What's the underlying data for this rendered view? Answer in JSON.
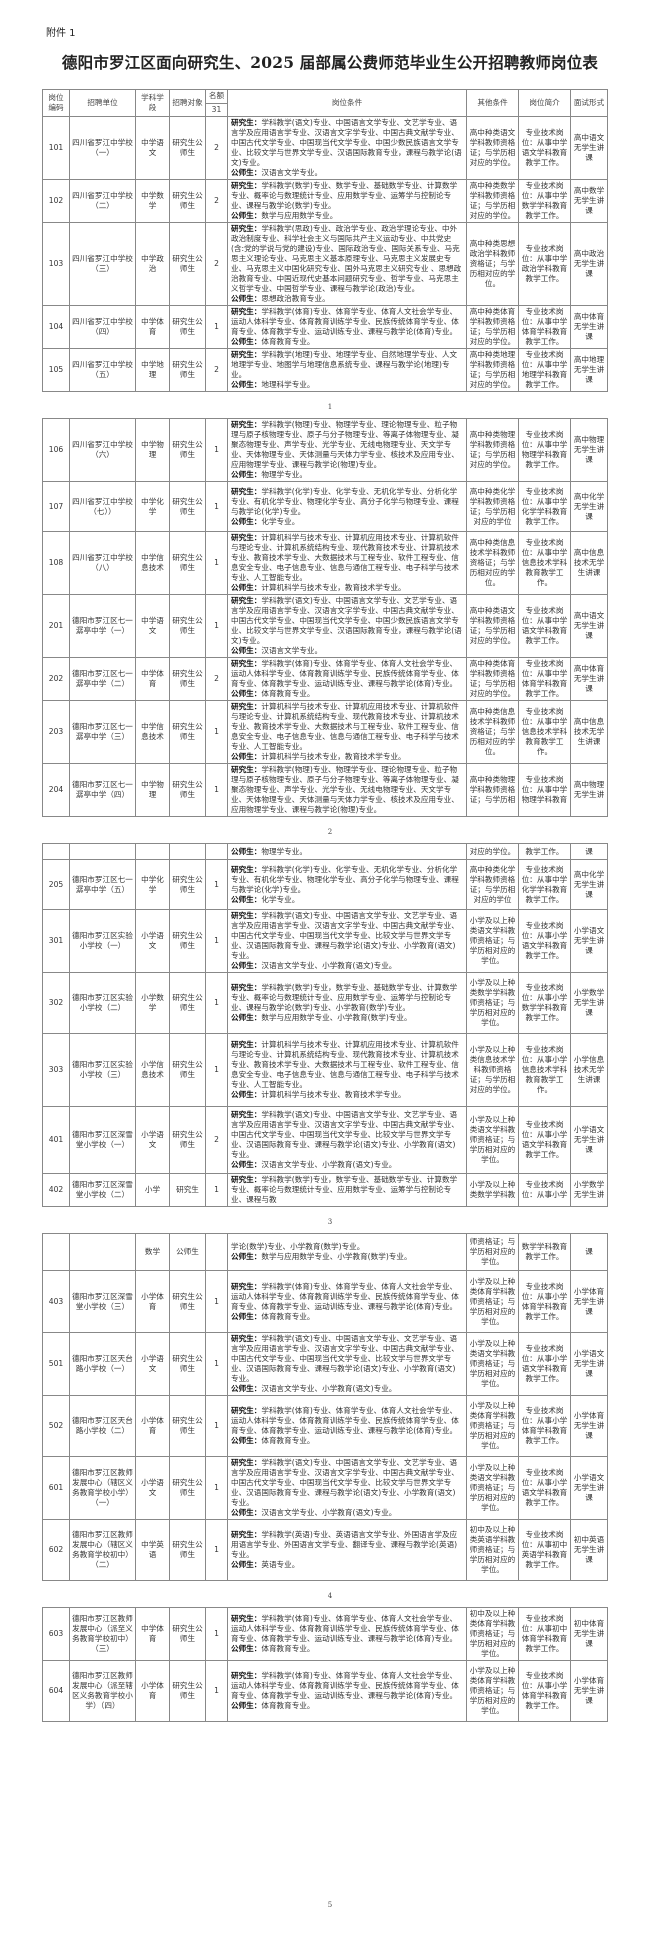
{
  "attachment_label": "附件 1",
  "title": "德阳市罗江区面向研究生、2025 届部属公费师范毕业生公开招聘教师岗位表",
  "header": {
    "code": "岗位编码",
    "unit": "招聘单位",
    "level": "学科学段",
    "target": "招聘对象",
    "count": "名额",
    "count_total": "31",
    "conditions": "岗位条件",
    "other": "其他条件",
    "intro": "岗位简介",
    "interview": "面试形式"
  },
  "page_numbers": [
    "1",
    "2",
    "3",
    "4",
    "5"
  ],
  "pages": [
    {
      "rows": [
        {
          "code": "101",
          "unit": "四川省罗江中学校（一）",
          "level": "中学语文",
          "target": "研究生公师生",
          "count": "2",
          "cond": [
            {
              "label": "研究生：",
              "text": "学科教学(语文)专业、中国语言文学专业、文艺学专业、语言学及应用语言学专业、汉语言文字学专业、中国古典文献学专业、中国古代文学专业、中国现当代文学专业、中国少数民族语言文学专业、比较文学与世界文学专业、汉语国际教育专业，课程与教学论(语文)专业。"
            },
            {
              "label": "公师生：",
              "text": "汉语言文学专业。"
            }
          ],
          "other": "高中种类语文学科教师资格证；与学历相对应的学位。",
          "intro": "专业技术岗位：从事中学语文学科教育教学工作。",
          "interview": "高中语文无学生讲课"
        },
        {
          "code": "102",
          "unit": "四川省罗江中学校（二）",
          "level": "中学数学",
          "target": "研究生公师生",
          "count": "2",
          "cond": [
            {
              "label": "研究生：",
              "text": "学科教学(数学)专业、数学专业、基础数学专业、计算数学专业、概率论与数理统计专业、应用数学专业、运筹学与控制论专业、课程与教学论(数学)专业。"
            },
            {
              "label": "公师生：",
              "text": "数学与应用数学专业。"
            }
          ],
          "other": "高中种类数学学科教师资格证；与学历相对应的学位。",
          "intro": "专业技术岗位：从事中学数学学科教育教学工作。",
          "interview": "高中数学无学生讲课"
        },
        {
          "code": "103",
          "unit": "四川省罗江中学校（三）",
          "level": "中学政治",
          "target": "研究生公师生",
          "count": "2",
          "cond": [
            {
              "label": "研究生：",
              "text": "学科教学(思政)专业、政治学专业、政治学理论专业、中外政治制度专业、科学社会主义与国际共产主义运动专业、中共党史(含:党的学说与党的建设)专业、国际政治专业、国际关系专业、马克思主义理论专业、马克思主义基本原理专业、马克思主义发展史专业、马克思主义中国化研究专业、国外马克思主义研究专业 、思想政治教育专业、中国近现代史基本问题研究专业、哲学专业、马克思主义哲学专业、中国哲学专业、课程与教学论(政治)专业。"
            },
            {
              "label": "公师生：",
              "text": "思想政治教育专业。"
            }
          ],
          "other": "高中种类思想政治学科教师资格证；与学历相对应的学位。",
          "intro": "专业技术岗位：从事中学政治学科教育教学工作。",
          "interview": "高中政治无学生讲课"
        },
        {
          "code": "104",
          "unit": "四川省罗江中学校（四）",
          "level": "中学体育",
          "target": "研究生公师生",
          "count": "1",
          "cond": [
            {
              "label": "研究生：",
              "text": "学科教学(体育)专业、体育学专业、体育人文社会学专业、运动人体科学专业、体育教育训练学专业、民族传统体育学专业、体育专业、体育教学专业、运动训练专业、课程与教学论(体育)专业。"
            },
            {
              "label": "公师生：",
              "text": "体育教育专业。"
            }
          ],
          "other": "高中种类体育学科教师资格证；与学历相对应的学位。",
          "intro": "专业技术岗位：从事中学体育学科教育教学工作。",
          "interview": "高中体育无学生讲课"
        },
        {
          "code": "105",
          "unit": "四川省罗江中学校（五）",
          "level": "中学地理",
          "target": "研究生公师生",
          "count": "2",
          "cond": [
            {
              "label": "研究生：",
              "text": "学科教学(地理)专业、地理学专业、自然地理学专业、人文地理学专业、地图学与地理信息系统专业、课程与教学论(地理)专业。"
            },
            {
              "label": "公师生：",
              "text": "地理科学专业。"
            }
          ],
          "other": "高中种类地理学科教师资格证；与学历相对应的学位。",
          "intro": "专业技术岗位：从事中学地理学科教育教学工作。",
          "interview": "高中地理无学生讲课"
        }
      ]
    },
    {
      "rows": [
        {
          "code": "106",
          "unit": "四川省罗江中学校（六）",
          "level": "中学物理",
          "target": "研究生公师生",
          "count": "1",
          "cond": [
            {
              "label": "研究生：",
              "text": "学科教学(物理)专业、物理学专业、理论物理专业、粒子物理与原子核物理专业、原子与分子物理专业、等离子体物理专业、凝聚态物理专业、声学专业、光学专业、无线电物理专业、天文学专业、天体物理专业、天体测量与天体力学专业、核技术及应用专业、应用物理学专业、课程与教学论(物理)专业。"
            },
            {
              "label": "公师生：",
              "text": "物理学专业。"
            }
          ],
          "other": "高中种类物理学科教师资格证；与学历相对应的学位。",
          "intro": "专业技术岗位：从事中学物理学科教育教学工作。",
          "interview": "高中物理无学生讲课"
        },
        {
          "code": "107",
          "unit": "四川省罗江中学校（七））",
          "level": "中学化学",
          "target": "研究生公师生",
          "count": "1",
          "cond": [
            {
              "label": "研究生：",
              "text": "学科教学(化学)专业、化学专业、无机化学专业、分析化学专业、有机化学专业、物理化学专业、高分子化学与物理专业、课程与教学论(化学)专业。"
            },
            {
              "label": "公师生：",
              "text": "化学专业。"
            }
          ],
          "other": "高中种类化学学科教师资格证；与学历相对应的学位",
          "intro": "专业技术岗位：从事中学化学学科教育教学工作。",
          "interview": "高中化学无学生讲课"
        },
        {
          "code": "108",
          "unit": "四川省罗江中学校（八）",
          "level": "中学信息技术",
          "target": "研究生公师生",
          "count": "1",
          "cond": [
            {
              "label": "研究生：",
              "text": "计算机科学与技术专业、计算机应用技术专业、计算机软件与理论专业、计算机系统结构专业、现代教育技术专业、计算机技术专业、教育技术学专业、大数据技术与工程专业、软件工程专业、信息安全专业、电子信息专业、信息与通信工程专业、电子科学与技术专业、人工智能专业。"
            },
            {
              "label": "公师生：",
              "text": "计算机科学与技术专业，教育技术学专业。"
            }
          ],
          "other": "高中种类信息技术学科教师资格证；与学历相对应的学位。",
          "intro": "专业技术岗位：从事中学信息技术学科教育教学工作。",
          "interview": "高中信息技术无学生讲课"
        },
        {
          "code": "201",
          "unit": "德阳市罗江区七一潺亭中学（一）",
          "level": "中学语文",
          "target": "研究生公师生",
          "count": "1",
          "cond": [
            {
              "label": "研究生：",
              "text": "学科教学(语文)专业、中国语言文学专业、文艺学专业、语言学及应用语言学专业、汉语言文字学专业、中国古典文献学专业、中国古代文学专业、中国现当代文学专业、中国少数民族语言文学专业、比较文学与世界文学专业、汉语国际教育专业，课程与教学论(语文)专业。"
            },
            {
              "label": "公师生：",
              "text": "汉语言文学专业。"
            }
          ],
          "other": "高中种类语文学科教师资格证；与学历相对应的学位。",
          "intro": "专业技术岗位：从事中学语文学科教育教学工作。",
          "interview": "高中语文无学生讲课"
        },
        {
          "code": "202",
          "unit": "德阳市罗江区七一潺亭中学（二）",
          "level": "中学体育",
          "target": "研究生公师生",
          "count": "2",
          "cond": [
            {
              "label": "研究生：",
              "text": "学科教学(体育)专业、体育学专业、体育人文社会学专业、运动人体科学专业、体育教育训练学专业、民族传统体育学专业、体育专业、体育教学专业、运动训练专业、课程与教学论(体育)专业。"
            },
            {
              "label": "公师生：",
              "text": "体育教育专业。"
            }
          ],
          "other": "高中种类体育学科教师资格证；与学历相对应的学位。",
          "intro": "专业技术岗位：从事中学体育学科教育教学工作。",
          "interview": "高中体育无学生讲课"
        },
        {
          "code": "203",
          "unit": "德阳市罗江区七一潺亭中学（三）",
          "level": "中学信息技术",
          "target": "研究生公师生",
          "count": "1",
          "cond": [
            {
              "label": "研究生：",
              "text": "计算机科学与技术专业、计算机应用技术专业、计算机软件与理论专业、计算机系统结构专业、现代教育技术专业、计算机技术专业、教育技术学专业、大数据技术与工程专业、软件工程专业、信息安全专业、电子信息专业、信息与通信工程专业、电子科学与技术专业、人工智能专业。"
            },
            {
              "label": "公师生：",
              "text": "计算机科学与技术专业，教育技术学专业。"
            }
          ],
          "other": "高中种类信息技术学科教师资格证；与学历相对应的学位。",
          "intro": "专业技术岗位：从事中学信息技术学科教育教学工作。",
          "interview": "高中信息技术无学生讲课"
        },
        {
          "code": "204",
          "unit": "德阳市罗江区七一潺亭中学（四）",
          "level": "中学物理",
          "target": "研究生公师生",
          "count": "1",
          "cond": [
            {
              "label": "研究生：",
              "text": "学科教学(物理)专业、物理学专业、理论物理专业、粒子物理与原子核物理专业、原子与分子物理专业、等离子体物理专业、凝聚态物理专业、声学专业、光学专业、无线电物理专业、天文学专业、天体物理专业、天体测量与天体力学专业、核技术及应用专业、应用物理学专业、课程与教学论(物理)专业。"
            }
          ],
          "other": "高中种类物理学科教师资格证；与学历相",
          "intro": "专业技术岗位：从事中学物理学科教育",
          "interview": "高中物理无学生讲"
        }
      ]
    },
    {
      "rows": [
        {
          "code": "",
          "unit": "",
          "level": "",
          "target": "",
          "count": "",
          "cond": [
            {
              "label": "公师生：",
              "text": "物理学专业。"
            }
          ],
          "other": "对应的学位。",
          "intro": "教学工作。",
          "interview": "课"
        },
        {
          "code": "205",
          "unit": "德阳市罗江区七一潺亭中学（五）",
          "level": "中学化学",
          "target": "研究生公师生",
          "count": "1",
          "cond": [
            {
              "label": "研究生：",
              "text": "学科教学(化学)专业、化学专业、无机化学专业、分析化学专业、有机化学专业、物理化学专业、高分子化学与物理专业、课程与教学论(化学)专业。"
            },
            {
              "label": "公师生：",
              "text": "化学专业。"
            }
          ],
          "other": "高中种类化学学科教师资格证；与学历相对应的学位",
          "intro": "专业技术岗位：从事中学化学学科教育教学工作。",
          "interview": "高中化学无学生讲课"
        },
        {
          "code": "301",
          "unit": "德阳市罗江区实验小学校（一）",
          "level": "小学语文",
          "target": "研究生公师生",
          "count": "1",
          "cond": [
            {
              "label": "研究生：",
              "text": "学科教学(语文)专业、中国语言文学专业、文艺学专业、语言学及应用语言学专业、汉语言文字学专业、中国古典文献学专业、中国古代文学专业、中国现当代文学专业、比较文学与世界文学专业、汉语国际教育专业、课程与教学论(语文)专业、小学教育(语文)专业。"
            },
            {
              "label": "公师生：",
              "text": "汉语言文学专业、小学教育(语文)专业。"
            }
          ],
          "other": "小学及以上种类语文学科教师资格证；与学历相对应的学位。",
          "intro": "专业技术岗位：从事小学语文学科教育教学工作。",
          "interview": "小学语文无学生讲课"
        },
        {
          "code": "302",
          "unit": "德阳市罗江区实验小学校（二）",
          "level": "小学数学",
          "target": "研究生公师生",
          "count": "1",
          "cond": [
            {
              "label": "研究生：",
              "text": "学科教学(数学)专业，数学专业、基础数学专业、计算数学专业、概率论与数理统计专业、应用数学专业、运筹学与控制论专业、课程与教学论(数学)专业、小学教育(数学)专业。"
            },
            {
              "label": "公师生：",
              "text": "数学与应用数学专业、小学教育(数学)专业。"
            }
          ],
          "other": "小学及以上种类数学学科教师资格证；与学历相对应的学位。",
          "intro": "专业技术岗位：从事小学数学学科教育教学工作。",
          "interview": "小学数学无学生讲课"
        },
        {
          "code": "303",
          "unit": "德阳市罗江区实验小学校（三）",
          "level": "小学信息技术",
          "target": "研究生公师生",
          "count": "1",
          "cond": [
            {
              "label": "研究生：",
              "text": "计算机科学与技术专业、计算机应用技术专业、计算机软件与理论专业、计算机系统结构专业、现代教育技术专业、计算机技术专业、教育技术学专业、大数据技术与工程专业、软件工程专业、信息安全专业、电子信息专业、信息与通信工程专业、电子科学与技术专业、人工智能专业。"
            },
            {
              "label": "公师生：",
              "text": "计算机科学与技术专业、教育技术学专业。"
            }
          ],
          "other": "小学及以上种类信息技术学科教师资格证；与学历相对应的学位。",
          "intro": "专业技术岗位：从事小学信息技术学科教育教学工作。",
          "interview": "小学信息技术无学生讲课"
        },
        {
          "code": "401",
          "unit": "德阳市罗江区深雪堂小学校（一）",
          "level": "小学语文",
          "target": "研究生公师生",
          "count": "2",
          "cond": [
            {
              "label": "研究生：",
              "text": "学科教学(语文)专业、中国语言文学专业、文艺学专业、语言学及应用语言学专业、汉语言文字学专业、中国古典文献学专业、中国古代文学专业、中国现当代文学专业、比较文学与世界文学专业、汉语国际教育专业、课程与教学论(语文)专业、小学教育(语文)专业。"
            },
            {
              "label": "公师生：",
              "text": "汉语言文学专业、小学教育(语文)专业。"
            }
          ],
          "other": "小学及以上种类语文学科教师资格证；与学历相对应的学位。",
          "intro": "专业技术岗位：从事小学语文学科教育教学工作。",
          "interview": "小学语文无学生讲课"
        },
        {
          "code": "402",
          "unit": "德阳市罗江区深雪堂小学校（二）",
          "level": "小学",
          "target": "研究生",
          "count": "1",
          "cond": [
            {
              "label": "研究生：",
              "text": "学科教学(数学)专业，数学专业、基础数学专业、计算数学专业、概率论与数理统计专业、应用数学专业、运筹学与控制论专业、课程与教"
            }
          ],
          "other": "小学及以上种类数学学科教",
          "intro": "专业技术岗位：从事小学",
          "interview": "小学数学无学生讲"
        }
      ]
    },
    {
      "rows": [
        {
          "code": "",
          "unit": "",
          "level": "数学",
          "target": "公师生",
          "count": "",
          "cond": [
            {
              "label": "",
              "text": "学论(数学)专业、小学教育(数学)专业。"
            },
            {
              "label": "公师生：",
              "text": "数学与应用数学专业、小学教育(数学)专业。"
            }
          ],
          "other": "师资格证；与学历相对应的学位。",
          "intro": "数学学科教育教学工作。",
          "interview": "课"
        },
        {
          "code": "403",
          "unit": "德阳市罗江区深雪堂小学校（三）",
          "level": "小学体育",
          "target": "研究生公师生",
          "count": "1",
          "cond": [
            {
              "label": "研究生：",
              "text": "学科教学(体育)专业、体育学专业、体育人文社会学专业、运动人体科学专业、体育教育训练学专业、民族传统体育学专业、体育专业、体育教学专业、运动训练专业、课程与教学论(体育)专业。"
            },
            {
              "label": "公师生：",
              "text": "体育教育专业。"
            }
          ],
          "other": "小学及以上种类体育学科教师资格证；与学历相对应的学位。",
          "intro": "专业技术岗位：从事小学体育学科教育教学工作。",
          "interview": "小学体育无学生讲课"
        },
        {
          "code": "501",
          "unit": "德阳市罗江区天台路小学校（一）",
          "level": "小学语文",
          "target": "研究生公师生",
          "count": "1",
          "cond": [
            {
              "label": "研究生：",
              "text": "学科教学(语文)专业、中国语言文学专业、文艺学专业、语言学及应用语言学专业、汉语言文字学专业、中国古典文献学专业、中国古代文学专业、中国现当代文学专业、比较文学与世界文学专业、汉语国际教育专业、课程与教学论(语文)专业、小学教育(语文)专业。"
            },
            {
              "label": "公师生：",
              "text": "汉语言文学专业、小学教育(语文)专业。"
            }
          ],
          "other": "小学及以上种类语文学科教师资格证；与学历相对应的学位。",
          "intro": "专业技术岗位：从事小学语文学科教育教学工作。",
          "interview": "小学语文无学生讲课"
        },
        {
          "code": "502",
          "unit": "德阳市罗江区天台路小学校（二）",
          "level": "小学体育",
          "target": "研究生公师生",
          "count": "1",
          "cond": [
            {
              "label": "研究生：",
              "text": "学科教学(体育)专业、体育学专业、体育人文社会学专业、运动人体科学专业、体育教育训练学专业、民族传统体育学专业、体育专业、体育教学专业、运动训练专业、课程与教学论(体育)专业。"
            },
            {
              "label": "公师生：",
              "text": "体育教育专业。"
            }
          ],
          "other": "小学及以上种类体育学科教师资格证；与学历相对应的学位。",
          "intro": "专业技术岗位：从事小学体育学科教育教学工作。",
          "interview": "小学体育无学生讲课"
        },
        {
          "code": "601",
          "unit": "德阳市罗江区教师发展中心（辖区义务教育学校小学）（一）",
          "level": "小学语文",
          "target": "研究生公师生",
          "count": "1",
          "cond": [
            {
              "label": "研究生：",
              "text": "学科教学(语文)专业、中国语言文学专业、文艺学专业、语言学及应用语言学专业、汉语言文字学专业、中国古典文献学专业、中国古代文学专业、中国现当代文学专业、比较文学与世界文学专业、汉语国际教育专业、课程与教学论(语文)专业、小学教育(语文)专业。"
            },
            {
              "label": "公师生：",
              "text": "汉语言文学专业、小学教育(语文)专业。"
            }
          ],
          "other": "小学及以上种类语文学科教师资格证；与学历相对应的学位。",
          "intro": "专业技术岗位：从事小学语文学科教育教学工作。",
          "interview": "小学语文无学生讲课"
        },
        {
          "code": "602",
          "unit": "德阳市罗江区教师发展中心（辖区义务教育学校初中）（二）",
          "level": "中学英语",
          "target": "研究生公师生",
          "count": "1",
          "cond": [
            {
              "label": "研究生：",
              "text": "学科教学(英语)专业、英语语言文学专业、外国语言学及应用语言学专业、外国语言文学专业、翻译专业、课程与教学论(英语)专业。"
            },
            {
              "label": "公师生：",
              "text": "英语专业。"
            }
          ],
          "other": "初中及以上种类英语学科教师资格证；与学历相对应的学位。",
          "intro": "专业技术岗位：从事初中英语学科教育教学工作。",
          "interview": "初中英语无学生讲课"
        }
      ]
    },
    {
      "rows": [
        {
          "code": "603",
          "unit": "德阳市罗江区教师发展中心（派至义务教育学校初中）（三）",
          "level": "中学体育",
          "target": "研究生公师生",
          "count": "1",
          "cond": [
            {
              "label": "研究生：",
              "text": "学科教学(体育)专业、体育学专业、体育人文社会学专业、运动人体科学专业、体育教育训练学专业、民族传统体育学专业、体育专业、体育教学专业、运动训练专业、课程与教学论(体育)专业。"
            },
            {
              "label": "公师生：",
              "text": "体育教育专业。"
            }
          ],
          "other": "初中及以上种类体育学科教师资格证；与学历相对应的学位。",
          "intro": "专业技术岗位：从事初中体育学科教育教学工作。",
          "interview": "初中体育无学生讲课"
        },
        {
          "code": "604",
          "unit": "德阳市罗江区教师发展中心（派至辖区义务教育学校小学）（四）",
          "level": "小学体育",
          "target": "研究生公师生",
          "count": "1",
          "cond": [
            {
              "label": "研究生：",
              "text": "学科教学(体育)专业、体育学专业、体育人文社会学专业、运动人体科学专业、体育教育训练学专业、民族传统体育学专业、体育专业、体育教学专业、运动训练专业、课程与教学论(体育)专业。"
            },
            {
              "label": "公师生：",
              "text": "体育教育专业。"
            }
          ],
          "other": "小学及以上种类体育学科教师资格证；与学历相对应的学位。",
          "intro": "专业技术岗位：从事小学体育学科教育教学工作。",
          "interview": "小学体育无学生讲课"
        }
      ]
    }
  ]
}
